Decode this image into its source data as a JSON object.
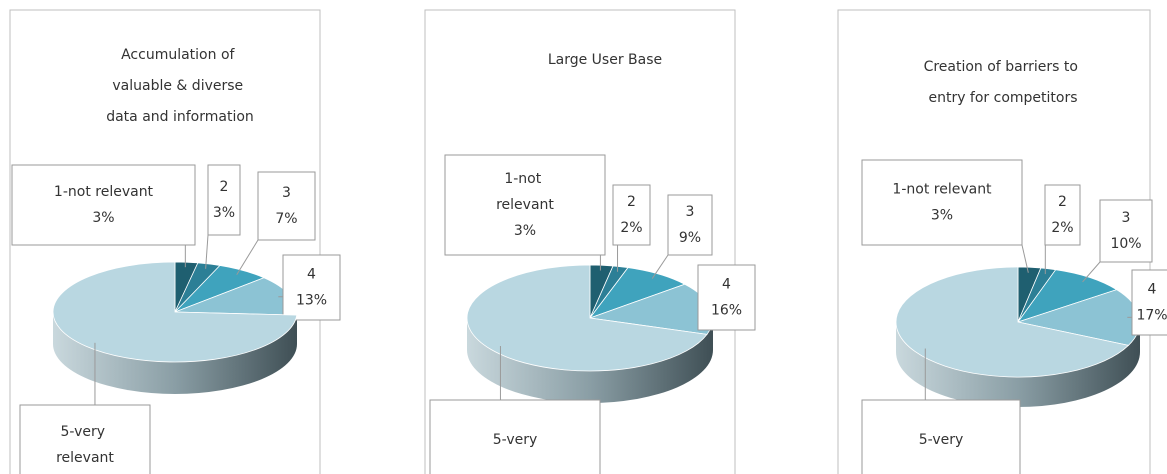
{
  "chart_data": [
    {
      "type": "pie",
      "title": "Accumulation of valuable & diverse data and information",
      "categories": [
        "1-not relevant",
        "2",
        "3",
        "4",
        "5-very relevant"
      ],
      "values": [
        3,
        3,
        7,
        13,
        74
      ],
      "value_labels": [
        "3%",
        "3%",
        "7%",
        "13%",
        null
      ],
      "colors": [
        "#1f5f70",
        "#2c7f96",
        "#3fa3bd",
        "#8cc3d4",
        "#b9d7e1"
      ]
    },
    {
      "type": "pie",
      "title": "Large User Base",
      "categories": [
        "1-not relevant",
        "2",
        "3",
        "4",
        "5-very"
      ],
      "values": [
        3,
        2,
        9,
        16,
        70
      ],
      "value_labels": [
        "3%",
        "2%",
        "9%",
        "16%",
        null
      ],
      "colors": [
        "#1f5f70",
        "#2c7f96",
        "#3fa3bd",
        "#8cc3d4",
        "#b9d7e1"
      ]
    },
    {
      "type": "pie",
      "title": "Creation of barriers to entry for competitors",
      "categories": [
        "1-not relevant",
        "2",
        "3",
        "4",
        "5-very"
      ],
      "values": [
        3,
        2,
        10,
        17,
        68
      ],
      "value_labels": [
        "3%",
        "2%",
        "10%",
        "17%",
        null
      ],
      "colors": [
        "#1f5f70",
        "#2c7f96",
        "#3fa3bd",
        "#8cc3d4",
        "#b9d7e1"
      ]
    }
  ]
}
